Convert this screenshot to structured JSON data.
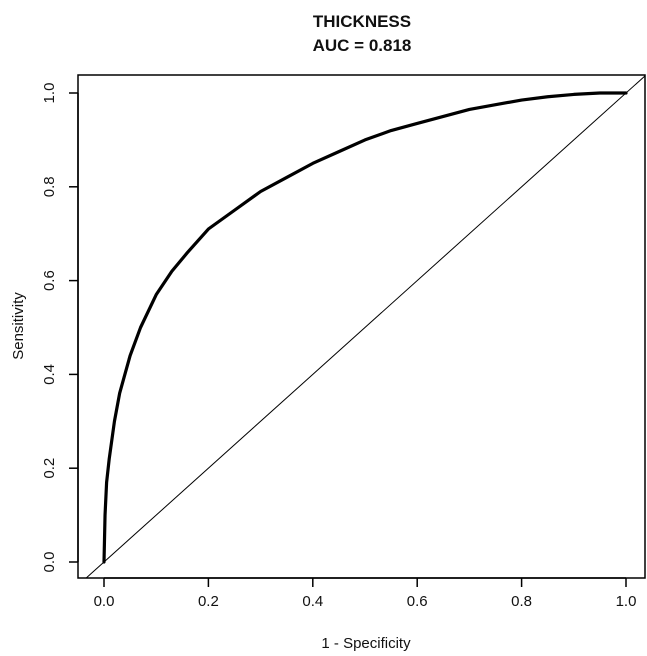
{
  "chart_data": {
    "type": "line",
    "title": "THICKNESS",
    "subtitle": "AUC = 0.818",
    "xlabel": "1 - Specificity",
    "ylabel": "Sensitivity",
    "xlim": [
      0.0,
      1.0
    ],
    "ylim": [
      0.0,
      1.0
    ],
    "x_ticks": [
      "0.0",
      "0.2",
      "0.4",
      "0.6",
      "0.8",
      "1.0"
    ],
    "y_ticks": [
      "0.0",
      "0.2",
      "0.4",
      "0.6",
      "0.8",
      "1.0"
    ],
    "grid": false,
    "series": [
      {
        "role": "roc-curve",
        "x": [
          0.0,
          0.002,
          0.005,
          0.01,
          0.02,
          0.03,
          0.05,
          0.07,
          0.1,
          0.13,
          0.16,
          0.2,
          0.25,
          0.3,
          0.35,
          0.4,
          0.45,
          0.5,
          0.55,
          0.6,
          0.65,
          0.7,
          0.75,
          0.8,
          0.85,
          0.9,
          0.95,
          1.0
        ],
        "y": [
          0.0,
          0.1,
          0.17,
          0.22,
          0.3,
          0.36,
          0.44,
          0.5,
          0.57,
          0.62,
          0.66,
          0.71,
          0.75,
          0.79,
          0.82,
          0.85,
          0.875,
          0.9,
          0.92,
          0.935,
          0.95,
          0.965,
          0.975,
          0.985,
          0.992,
          0.997,
          1.0,
          1.0
        ],
        "color": "#000000"
      },
      {
        "role": "reference-diagonal",
        "x": [
          0.0,
          1.0
        ],
        "y": [
          0.0,
          1.0
        ],
        "color": "#000000"
      }
    ]
  }
}
